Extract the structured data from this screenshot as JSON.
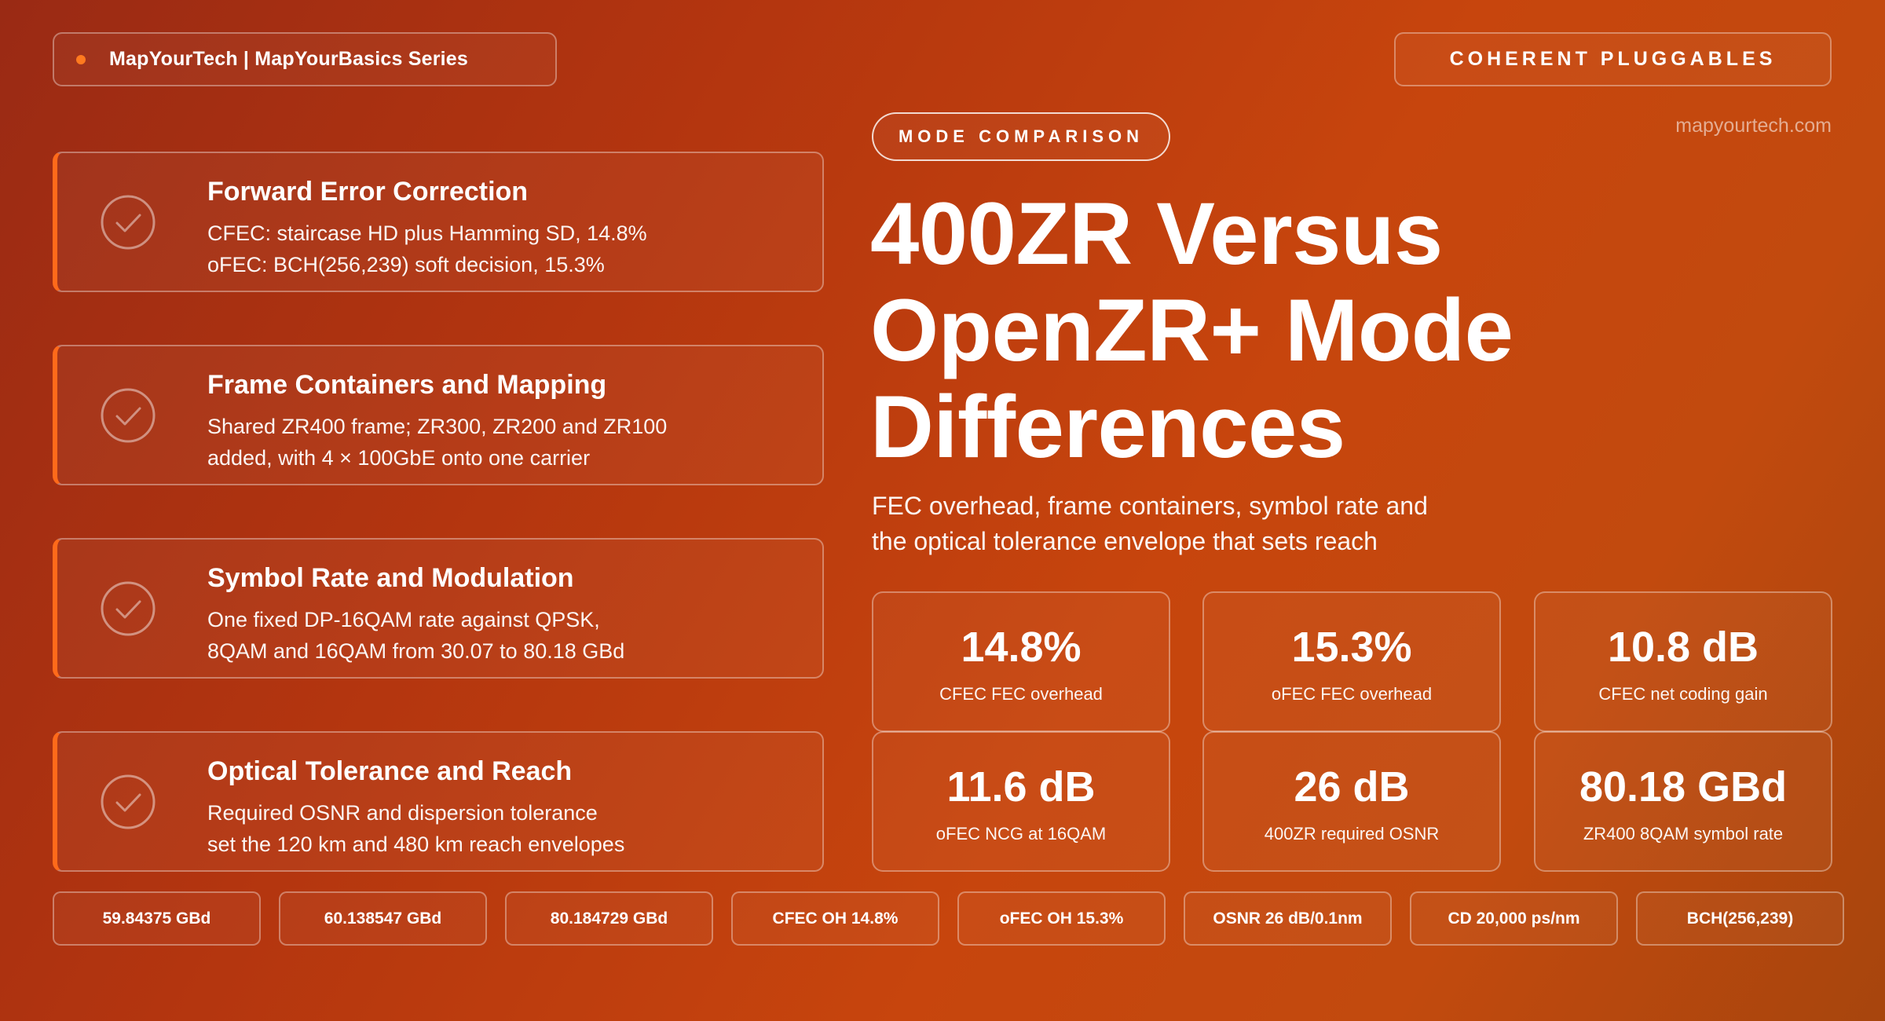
{
  "header": {
    "brand": "MapYourTech | MapYourBasics Series",
    "series": "COHERENT PLUGGABLES",
    "site": "mapyourtech.com"
  },
  "hero": {
    "pill": "MODE COMPARISON",
    "title_lines": [
      "400ZR Versus",
      "OpenZR+ Mode",
      "Differences"
    ],
    "subtitle_lines": [
      "FEC overhead, frame containers, symbol rate and",
      "the optical tolerance envelope that sets reach"
    ]
  },
  "features": [
    {
      "title": "Forward Error Correction",
      "lines": [
        "CFEC: staircase HD plus Hamming SD, 14.8%",
        "oFEC: BCH(256,239) soft decision, 15.3%"
      ]
    },
    {
      "title": "Frame Containers and Mapping",
      "lines": [
        "Shared ZR400 frame; ZR300, ZR200 and ZR100",
        "added, with 4 × 100GbE onto one carrier"
      ]
    },
    {
      "title": "Symbol Rate and Modulation",
      "lines": [
        "One fixed DP-16QAM rate against QPSK,",
        "8QAM and 16QAM from 30.07 to 80.18 GBd"
      ]
    },
    {
      "title": "Optical Tolerance and Reach",
      "lines": [
        "Required OSNR and dispersion tolerance",
        "set the 120 km and 480 km reach envelopes"
      ]
    }
  ],
  "stats": [
    {
      "value": "14.8%",
      "label": "CFEC FEC overhead"
    },
    {
      "value": "15.3%",
      "label": "oFEC FEC overhead"
    },
    {
      "value": "10.8 dB",
      "label": "CFEC net coding gain"
    },
    {
      "value": "11.6 dB",
      "label": "oFEC NCG at 16QAM"
    },
    {
      "value": "26 dB",
      "label": "400ZR required OSNR"
    },
    {
      "value": "80.18 GBd",
      "label": "ZR400 8QAM symbol rate"
    }
  ],
  "tags": [
    "59.84375 GBd",
    "60.138547 GBd",
    "80.184729 GBd",
    "CFEC OH 14.8%",
    "oFEC OH 15.3%",
    "OSNR 26 dB/0.1nm",
    "CD 20,000 ps/nm",
    "BCH(256,239)"
  ],
  "colors": {
    "accent": "#ff6a1a",
    "background_start": "#9a2a14",
    "background_end": "#c7450d"
  },
  "icons": {
    "feature": "check-circle-icon",
    "brand": "dot-icon"
  }
}
